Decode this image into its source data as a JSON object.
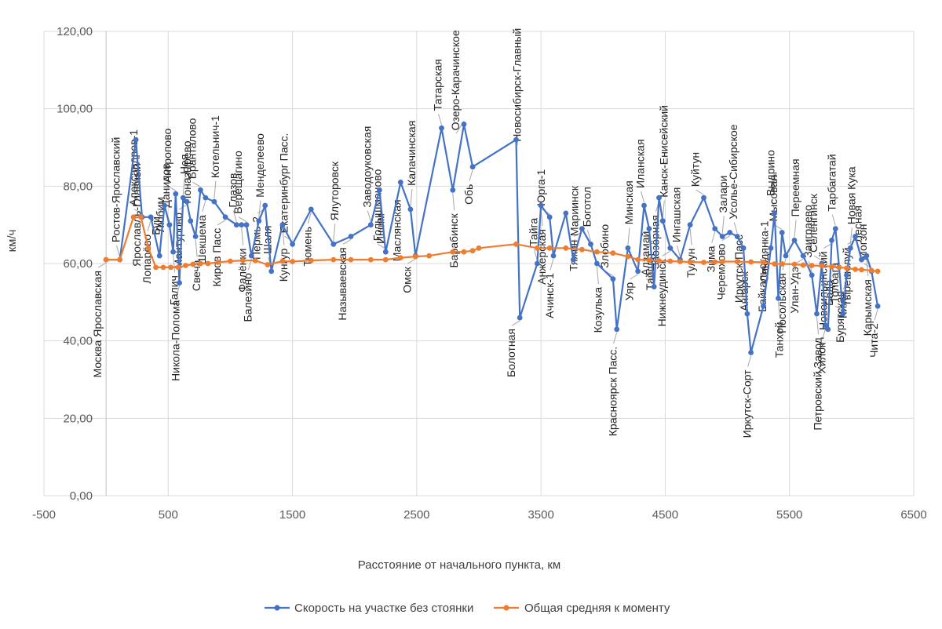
{
  "chart_data": {
    "type": "scatter",
    "title": "",
    "xlabel": "Расстояние от начального пункта, км",
    "ylabel": "км/ч",
    "xlim": [
      -500,
      6500
    ],
    "ylim": [
      0,
      120
    ],
    "x_ticks": [
      "-500",
      "500",
      "1500",
      "2500",
      "3500",
      "4500",
      "5500",
      "6500"
    ],
    "x_tick_values": [
      -500,
      500,
      1500,
      2500,
      3500,
      4500,
      5500,
      6500
    ],
    "y_ticks": [
      "0,00",
      "20,00",
      "40,00",
      "60,00",
      "80,00",
      "100,00",
      "120,00"
    ],
    "y_tick_values": [
      0,
      20,
      40,
      60,
      80,
      100,
      120
    ],
    "grid": true,
    "legend_position": "bottom",
    "colors": {
      "series1": "#4472C4",
      "series2": "#ED7D31",
      "grid": "#D9D9D9",
      "leader": "#A6A6A6"
    },
    "series": [
      {
        "name": "Скорость на участке без стоянки",
        "points": [
          [
            0,
            61
          ],
          [
            110,
            61
          ],
          [
            240,
            92
          ],
          [
            290,
            72
          ],
          [
            360,
            72
          ],
          [
            430,
            62
          ],
          [
            470,
            75
          ],
          [
            510,
            70
          ],
          [
            540,
            63
          ],
          [
            560,
            78
          ],
          [
            590,
            55
          ],
          [
            620,
            77
          ],
          [
            650,
            76
          ],
          [
            680,
            71
          ],
          [
            720,
            67
          ],
          [
            760,
            79
          ],
          [
            800,
            77
          ],
          [
            870,
            76
          ],
          [
            960,
            72
          ],
          [
            1050,
            70
          ],
          [
            1090,
            70
          ],
          [
            1130,
            70
          ],
          [
            1170,
            62
          ],
          [
            1230,
            71
          ],
          [
            1280,
            75
          ],
          [
            1330,
            58
          ],
          [
            1420,
            70
          ],
          [
            1500,
            65
          ],
          [
            1650,
            74
          ],
          [
            1830,
            65
          ],
          [
            1970,
            67
          ],
          [
            2130,
            70
          ],
          [
            2200,
            79
          ],
          [
            2250,
            63
          ],
          [
            2370,
            81
          ],
          [
            2450,
            74
          ],
          [
            2490,
            62
          ],
          [
            2700,
            95
          ],
          [
            2790,
            79
          ],
          [
            2880,
            96
          ],
          [
            2950,
            85
          ],
          [
            3300,
            92
          ],
          [
            3330,
            46
          ],
          [
            3470,
            60
          ],
          [
            3500,
            75
          ],
          [
            3570,
            72
          ],
          [
            3600,
            62
          ],
          [
            3700,
            73
          ],
          [
            3760,
            61
          ],
          [
            3830,
            69
          ],
          [
            3900,
            65
          ],
          [
            3950,
            60
          ],
          [
            4080,
            56
          ],
          [
            4110,
            43
          ],
          [
            4200,
            64
          ],
          [
            4280,
            58
          ],
          [
            4330,
            75
          ],
          [
            4370,
            69
          ],
          [
            4410,
            54
          ],
          [
            4450,
            77
          ],
          [
            4480,
            71
          ],
          [
            4540,
            64
          ],
          [
            4620,
            61
          ],
          [
            4700,
            70
          ],
          [
            4810,
            77
          ],
          [
            4900,
            69
          ],
          [
            4960,
            67
          ],
          [
            5020,
            68
          ],
          [
            5080,
            67
          ],
          [
            5130,
            64
          ],
          [
            5160,
            47
          ],
          [
            5190,
            37
          ],
          [
            5290,
            49
          ],
          [
            5350,
            64
          ],
          [
            5380,
            73
          ],
          [
            5410,
            51
          ],
          [
            5440,
            68
          ],
          [
            5470,
            62
          ],
          [
            5540,
            66
          ],
          [
            5610,
            62
          ],
          [
            5680,
            57
          ],
          [
            5720,
            47
          ],
          [
            5760,
            60
          ],
          [
            5790,
            44
          ],
          [
            5810,
            43
          ],
          [
            5840,
            66
          ],
          [
            5870,
            69
          ],
          [
            5900,
            59
          ],
          [
            5930,
            47
          ],
          [
            5960,
            57
          ],
          [
            5990,
            64
          ],
          [
            6030,
            67
          ],
          [
            6080,
            61
          ],
          [
            6120,
            62
          ],
          [
            6160,
            58
          ],
          [
            6210,
            49
          ]
        ]
      },
      {
        "name": "Общая средняя к моменту",
        "points": [
          [
            0,
            61
          ],
          [
            110,
            61
          ],
          [
            220,
            72
          ],
          [
            280,
            72
          ],
          [
            340,
            64
          ],
          [
            400,
            59
          ],
          [
            460,
            59
          ],
          [
            520,
            59
          ],
          [
            580,
            59
          ],
          [
            640,
            59.5
          ],
          [
            700,
            59.8
          ],
          [
            760,
            60
          ],
          [
            820,
            60
          ],
          [
            900,
            60.3
          ],
          [
            1000,
            60.6
          ],
          [
            1100,
            60.8
          ],
          [
            1200,
            60.8
          ],
          [
            1300,
            59.7
          ],
          [
            1420,
            60.6
          ],
          [
            1500,
            60.5
          ],
          [
            1650,
            60.8
          ],
          [
            1830,
            61
          ],
          [
            1970,
            61
          ],
          [
            2130,
            61
          ],
          [
            2250,
            61
          ],
          [
            2370,
            61.5
          ],
          [
            2490,
            61.8
          ],
          [
            2600,
            62
          ],
          [
            2790,
            63
          ],
          [
            2880,
            63
          ],
          [
            2950,
            63.3
          ],
          [
            3000,
            64
          ],
          [
            3300,
            65
          ],
          [
            3470,
            64
          ],
          [
            3570,
            64
          ],
          [
            3700,
            64
          ],
          [
            3830,
            63.6
          ],
          [
            3950,
            63
          ],
          [
            4080,
            62.7
          ],
          [
            4200,
            61.8
          ],
          [
            4280,
            61
          ],
          [
            4370,
            60.9
          ],
          [
            4450,
            60.7
          ],
          [
            4540,
            60.6
          ],
          [
            4620,
            60.5
          ],
          [
            4700,
            60.4
          ],
          [
            4810,
            60.3
          ],
          [
            4900,
            60.4
          ],
          [
            4960,
            60.5
          ],
          [
            5080,
            60.5
          ],
          [
            5190,
            60.4
          ],
          [
            5290,
            60.3
          ],
          [
            5380,
            59.9
          ],
          [
            5440,
            59.9
          ],
          [
            5540,
            59.8
          ],
          [
            5610,
            59.6
          ],
          [
            5680,
            59.5
          ],
          [
            5760,
            59.4
          ],
          [
            5840,
            59.2
          ],
          [
            5900,
            59
          ],
          [
            5960,
            58.8
          ],
          [
            6030,
            58.5
          ],
          [
            6080,
            58.4
          ],
          [
            6160,
            58.2
          ],
          [
            6210,
            58
          ]
        ]
      }
    ],
    "station_labels": [
      "Москва Ярославская",
      "Ростов-Ярославский",
      "Ярославль-Главный",
      "Александров-1",
      "Лопарёво",
      "Любим",
      "Буй",
      "Данилов",
      "Галич",
      "Антропово",
      "Никола-Полома",
      "Нея",
      "Мантурово",
      "Поназырево",
      "Свеча",
      "Бранталово",
      "Шекшема",
      "Котельнич-1",
      "Киров Пасс",
      "Глазов",
      "Фалёнки",
      "Верещагино",
      "Балезино",
      "Менделеево",
      "Пермь-2",
      "Шаля",
      "Кунгур",
      "Екатеринбург Пасс.",
      "Тюмень",
      "Ялуторовск",
      "Называевская",
      "Заводоуковская",
      "Ишим",
      "Голышманово",
      "Маслянская",
      "Калачинская",
      "Омск",
      "Татарская",
      "Барабинск",
      "Озеро-Карачинское",
      "Обь",
      "Новосибирск-Главный",
      "Болотная",
      "Тайга",
      "Анжерская",
      "Юрга-1",
      "Ачинск-1",
      "Мариинск",
      "Тяжин",
      "Боготол",
      "Козулька",
      "Злобино",
      "Красноярск Пасс.",
      "Минская",
      "Уяр",
      "Иланская",
      "Тайшет",
      "Алзамай",
      "Заозёрная",
      "Канск-Енисейский",
      "Нижнеудинск",
      "Ингашская",
      "Тулун",
      "Куйтун",
      "Зима",
      "Залари",
      "Черемхово",
      "Усолье-Сибирское",
      "Ангарск",
      "Иркутск-Пасс",
      "Иркутск-Сорт",
      "Слюдянка-1",
      "Байкальск",
      "Выдрино",
      "Танхой",
      "Мысовая",
      "Посольская",
      "Переемная",
      "Улан-Удэ",
      "Заиграево",
      "Петровский Завод",
      "Селенгинск",
      "Хилок",
      "Бада",
      "Новоильинский",
      "Тарбагатай",
      "Бурятская",
      "Толбага",
      "Кижа",
      "Новая Кука",
      "Тырешелуй",
      "Лесная",
      "Карымская",
      "Могзон",
      "Чита-2"
    ]
  },
  "axis": {
    "xlabel": "Расстояние от начального пункта, км",
    "ylabel": "км/ч"
  },
  "legend": {
    "series1": "Скорость на участке без стоянки",
    "series2": "Общая средняя к моменту"
  }
}
